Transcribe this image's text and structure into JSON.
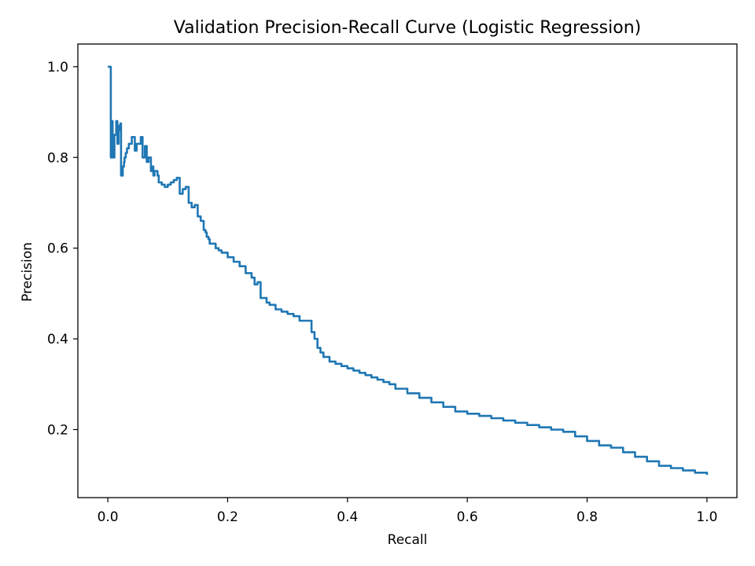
{
  "chart_data": {
    "type": "line",
    "title": "Validation Precision-Recall Curve (Logistic Regression)",
    "xlabel": "Recall",
    "ylabel": "Precision",
    "xlim": [
      -0.05,
      1.05
    ],
    "ylim": [
      0.05,
      1.05
    ],
    "xticks": [
      0.0,
      0.2,
      0.4,
      0.6,
      0.8,
      1.0
    ],
    "xtick_labels": [
      "0.0",
      "0.2",
      "0.4",
      "0.6",
      "0.8",
      "1.0"
    ],
    "yticks": [
      0.2,
      0.4,
      0.6,
      0.8,
      1.0
    ],
    "ytick_labels": [
      "0.2",
      "0.4",
      "0.6",
      "0.8",
      "1.0"
    ],
    "grid": false,
    "series": [
      {
        "color": "#1f77b4",
        "x": [
          0.0,
          0.005,
          0.005,
          0.006,
          0.006,
          0.008,
          0.01,
          0.011,
          0.011,
          0.014,
          0.016,
          0.018,
          0.019,
          0.021,
          0.022,
          0.025,
          0.027,
          0.028,
          0.03,
          0.032,
          0.035,
          0.04,
          0.045,
          0.048,
          0.05,
          0.055,
          0.058,
          0.062,
          0.065,
          0.068,
          0.07,
          0.072,
          0.075,
          0.076,
          0.078,
          0.08,
          0.083,
          0.085,
          0.088,
          0.09,
          0.093,
          0.095,
          0.1,
          0.105,
          0.11,
          0.115,
          0.12,
          0.125,
          0.13,
          0.135,
          0.14,
          0.145,
          0.15,
          0.155,
          0.16,
          0.163,
          0.165,
          0.168,
          0.17,
          0.175,
          0.18,
          0.185,
          0.19,
          0.2,
          0.21,
          0.22,
          0.23,
          0.24,
          0.245,
          0.25,
          0.255,
          0.26,
          0.265,
          0.27,
          0.28,
          0.29,
          0.3,
          0.31,
          0.32,
          0.33,
          0.34,
          0.345,
          0.35,
          0.355,
          0.36,
          0.37,
          0.38,
          0.39,
          0.4,
          0.41,
          0.42,
          0.43,
          0.44,
          0.45,
          0.46,
          0.47,
          0.48,
          0.5,
          0.52,
          0.54,
          0.56,
          0.58,
          0.6,
          0.62,
          0.64,
          0.66,
          0.68,
          0.7,
          0.72,
          0.74,
          0.76,
          0.78,
          0.8,
          0.82,
          0.84,
          0.86,
          0.88,
          0.9,
          0.92,
          0.94,
          0.96,
          0.98,
          1.0
        ],
        "y": [
          1.0,
          1.0,
          0.8,
          0.8,
          0.88,
          0.8,
          0.8,
          0.83,
          0.85,
          0.88,
          0.83,
          0.86,
          0.87,
          0.875,
          0.76,
          0.78,
          0.79,
          0.8,
          0.81,
          0.82,
          0.83,
          0.845,
          0.815,
          0.83,
          0.83,
          0.845,
          0.8,
          0.825,
          0.79,
          0.8,
          0.8,
          0.77,
          0.78,
          0.76,
          0.77,
          0.77,
          0.76,
          0.745,
          0.745,
          0.74,
          0.74,
          0.735,
          0.74,
          0.745,
          0.75,
          0.755,
          0.72,
          0.73,
          0.735,
          0.7,
          0.69,
          0.695,
          0.67,
          0.66,
          0.64,
          0.635,
          0.625,
          0.62,
          0.61,
          0.61,
          0.6,
          0.595,
          0.59,
          0.58,
          0.57,
          0.56,
          0.545,
          0.535,
          0.52,
          0.525,
          0.49,
          0.49,
          0.48,
          0.475,
          0.465,
          0.46,
          0.455,
          0.45,
          0.44,
          0.44,
          0.415,
          0.4,
          0.38,
          0.37,
          0.36,
          0.35,
          0.345,
          0.34,
          0.335,
          0.33,
          0.325,
          0.32,
          0.315,
          0.31,
          0.305,
          0.3,
          0.29,
          0.28,
          0.27,
          0.26,
          0.25,
          0.24,
          0.235,
          0.23,
          0.225,
          0.22,
          0.215,
          0.21,
          0.205,
          0.2,
          0.195,
          0.185,
          0.175,
          0.165,
          0.16,
          0.15,
          0.14,
          0.13,
          0.12,
          0.115,
          0.11,
          0.105,
          0.1
        ]
      }
    ]
  }
}
